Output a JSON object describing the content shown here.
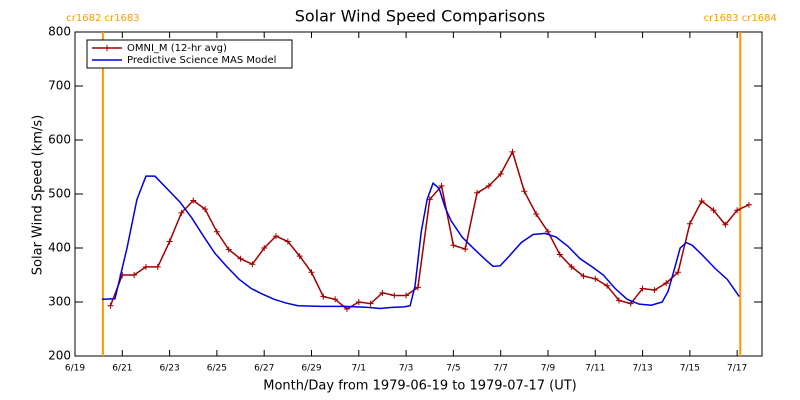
{
  "chart_data": {
    "type": "line",
    "title": "Solar Wind Speed Comparisons",
    "x_label": "Month/Day from 1979-06-19 to 1979-07-17 (UT)",
    "y_label": "Solar Wind Speed (km/s)",
    "xlim": [
      0,
      29.05
    ],
    "xticks": [
      {
        "value": 0,
        "label": "6/19"
      },
      {
        "value": 2,
        "label": "6/21"
      },
      {
        "value": 4,
        "label": "6/23"
      },
      {
        "value": 6,
        "label": "6/25"
      },
      {
        "value": 8,
        "label": "6/27"
      },
      {
        "value": 10,
        "label": "6/29"
      },
      {
        "value": 12,
        "label": "7/1"
      },
      {
        "value": 14,
        "label": "7/3"
      },
      {
        "value": 16,
        "label": "7/5"
      },
      {
        "value": 18,
        "label": "7/7"
      },
      {
        "value": 20,
        "label": "7/9"
      },
      {
        "value": 22,
        "label": "7/11"
      },
      {
        "value": 24,
        "label": "7/13"
      },
      {
        "value": 26,
        "label": "7/15"
      },
      {
        "value": 28,
        "label": "7/17"
      }
    ],
    "ylim": [
      200,
      800
    ],
    "yticks": [
      200,
      300,
      400,
      500,
      600,
      700,
      800
    ],
    "vlines": [
      {
        "x": 1.18,
        "label": "cr1682 cr1683",
        "color": "#ff9900"
      },
      {
        "x": 28.13,
        "label": "cr1683 cr1684",
        "color": "#ff9900"
      }
    ],
    "legend": "upper left",
    "series": [
      {
        "name": "OMNI_M (12-hr avg)",
        "color": "#a00000",
        "marker": "+",
        "x": [
          1.5,
          2,
          2.5,
          3,
          3.5,
          4,
          4.5,
          5,
          5.5,
          6,
          6.5,
          7,
          7.5,
          8,
          8.5,
          9,
          9.5,
          10,
          10.5,
          11,
          11.5,
          12,
          12.5,
          13,
          13.5,
          14,
          14.5,
          15,
          15.5,
          16,
          16.5,
          17,
          17.5,
          18,
          18.5,
          19,
          19.5,
          20,
          20.5,
          21,
          21.5,
          22,
          22.5,
          23,
          23.5,
          24,
          24.5,
          25,
          25.5,
          26,
          26.5,
          27,
          27.5,
          28,
          28.5
        ],
        "values": [
          293,
          350,
          350,
          365,
          365,
          412,
          465,
          488,
          472,
          430,
          397,
          380,
          370,
          400,
          422,
          412,
          385,
          355,
          310,
          305,
          287,
          300,
          297,
          317,
          312,
          312,
          327,
          490,
          515,
          405,
          398,
          502,
          515,
          537,
          578,
          505,
          463,
          430,
          388,
          365,
          348,
          343,
          330,
          303,
          297,
          325,
          322,
          335,
          355,
          445,
          487,
          470,
          443,
          470,
          480
        ]
      },
      {
        "name": "Predictive Science MAS Model",
        "color": "#0000dd",
        "x": [
          1.14,
          1.69,
          2.2,
          2.62,
          3.0,
          3.38,
          3.89,
          4.44,
          4.95,
          5.46,
          5.92,
          6.43,
          6.94,
          7.45,
          7.91,
          8.42,
          8.93,
          9.43,
          10.41,
          11.42,
          12.39,
          12.9,
          13.41,
          13.92,
          14.17,
          14.38,
          14.64,
          14.89,
          15.14,
          15.4,
          15.65,
          15.91,
          16.37,
          16.88,
          17.39,
          17.68,
          17.98,
          18.36,
          18.87,
          19.37,
          19.88,
          20.35,
          20.85,
          21.36,
          21.87,
          22.34,
          22.84,
          23.35,
          23.86,
          24.37,
          24.83,
          25.08,
          25.34,
          25.59,
          25.85,
          26.1,
          26.57,
          27.07,
          27.58,
          28.09
        ],
        "values": [
          305,
          306,
          400,
          490,
          533,
          533,
          510,
          485,
          455,
          420,
          390,
          365,
          342,
          325,
          315,
          305,
          298,
          293,
          292,
          292,
          290,
          288,
          290,
          291,
          293,
          330,
          430,
          490,
          520,
          510,
          475,
          450,
          420,
          398,
          377,
          366,
          367,
          385,
          410,
          425,
          427,
          420,
          403,
          380,
          365,
          350,
          325,
          305,
          296,
          294,
          300,
          320,
          360,
          400,
          410,
          405,
          385,
          362,
          342,
          310
        ]
      }
    ]
  }
}
